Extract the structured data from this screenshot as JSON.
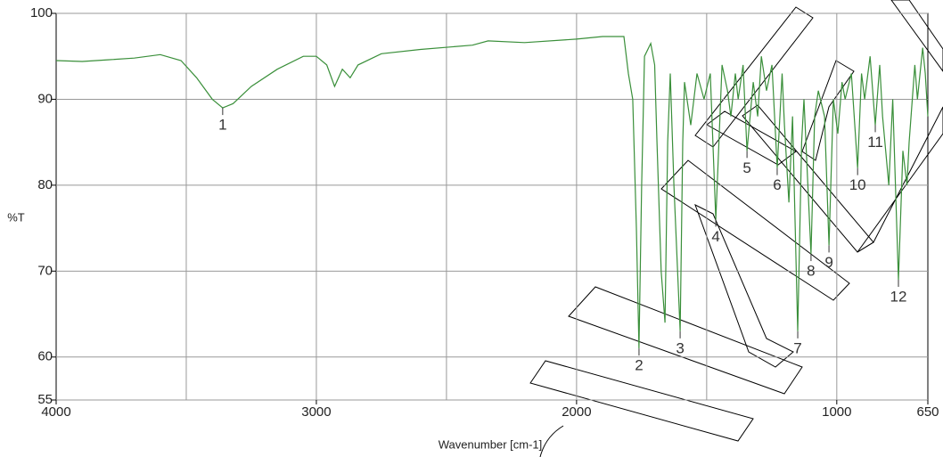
{
  "chart_data": {
    "type": "line",
    "ylabel": "%T",
    "xlabel": "Wavenumber [cm-1]",
    "x": [
      4000,
      3900,
      3800,
      3700,
      3600,
      3520,
      3460,
      3400,
      3360,
      3320,
      3250,
      3150,
      3050,
      3000,
      2960,
      2930,
      2900,
      2870,
      2840,
      2750,
      2600,
      2400,
      2340,
      2200,
      2000,
      1900,
      1818,
      1801,
      1784,
      1770,
      1760,
      1750,
      1739,
      1715,
      1700,
      1691,
      1675,
      1660,
      1650,
      1640,
      1626,
      1602,
      1592,
      1585,
      1561,
      1537,
      1510,
      1486,
      1465,
      1441,
      1420,
      1407,
      1390,
      1379,
      1360,
      1345,
      1321,
      1304,
      1290,
      1270,
      1249,
      1229,
      1210,
      1201,
      1184,
      1170,
      1150,
      1135,
      1126,
      1099,
      1085,
      1071,
      1047,
      1030,
      1013,
      996,
      980,
      968,
      944,
      920,
      905,
      893,
      872,
      852,
      835,
      824,
      800,
      785,
      763,
      746,
      730,
      722,
      700,
      690,
      670,
      660,
      650
    ],
    "series": [
      {
        "color": "#3a8f3a",
        "values": [
          94.5,
          94.4,
          94.6,
          94.8,
          95.2,
          94.5,
          92.5,
          90,
          89,
          89.5,
          91.5,
          93.5,
          95,
          95,
          94,
          91.5,
          93.5,
          92.5,
          94,
          95.3,
          95.8,
          96.3,
          96.8,
          96.6,
          97,
          97.3,
          97.3,
          93,
          90,
          75,
          61,
          80,
          95,
          96.5,
          94,
          85,
          70,
          64,
          85,
          93,
          80,
          63,
          85,
          92,
          87,
          93,
          90,
          93,
          76,
          94,
          91,
          88,
          93,
          90,
          94,
          84,
          92,
          88,
          95,
          91,
          94,
          82,
          93,
          87,
          78,
          88,
          63,
          85,
          90,
          72,
          88,
          91,
          88,
          73,
          90,
          86,
          92,
          90,
          93,
          82,
          93,
          90,
          95,
          87,
          94,
          88,
          80,
          90,
          69,
          84,
          80,
          85,
          94,
          90,
          96,
          93,
          88
        ]
      }
    ],
    "xlim": [
      4000,
      650
    ],
    "ylim": [
      55,
      100
    ],
    "xticks": [
      4000,
      3000,
      2000,
      1000,
      650
    ],
    "xgrid": [
      3500,
      3000,
      2500,
      2000,
      1500,
      1000
    ],
    "yticks": [
      100,
      90,
      80,
      70,
      60,
      55
    ],
    "grid": true,
    "annotations": [
      {
        "text": "1",
        "x": 3360,
        "y": 89
      },
      {
        "text": "2",
        "x": 1760,
        "y": 61
      },
      {
        "text": "3",
        "x": 1602,
        "y": 63
      },
      {
        "text": "4",
        "x": 1465,
        "y": 76
      },
      {
        "text": "5",
        "x": 1345,
        "y": 84
      },
      {
        "text": "6",
        "x": 1229,
        "y": 82
      },
      {
        "text": "7",
        "x": 1150,
        "y": 63
      },
      {
        "text": "8",
        "x": 1099,
        "y": 72
      },
      {
        "text": "9",
        "x": 1030,
        "y": 73
      },
      {
        "text": "10",
        "x": 920,
        "y": 82
      },
      {
        "text": "11",
        "x": 852,
        "y": 87
      },
      {
        "text": "12",
        "x": 763,
        "y": 69
      }
    ]
  }
}
